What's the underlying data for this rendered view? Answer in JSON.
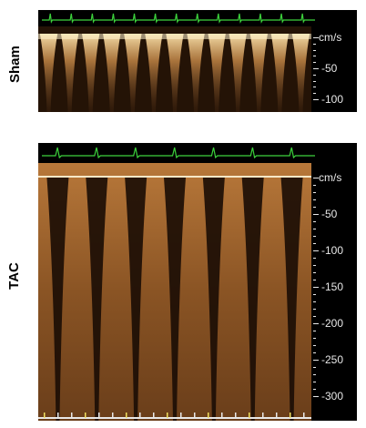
{
  "panels": [
    {
      "id": "sham",
      "label": "Sham",
      "axis_unit": "cm/s",
      "axis_ticks": [
        "-50",
        "-100"
      ],
      "beats": 13,
      "max_velocity_cm_s": -100,
      "ecg_color": "#3cd23c",
      "spectrum_color": "#d8a060"
    },
    {
      "id": "tac",
      "label": "TAC",
      "axis_unit": "cm/s",
      "axis_ticks": [
        "-50",
        "-100",
        "-150",
        "-200",
        "-250",
        "-300"
      ],
      "beats": 7,
      "max_velocity_cm_s": -300,
      "ecg_color": "#3cd23c",
      "spectrum_color": "#c98c45"
    }
  ]
}
